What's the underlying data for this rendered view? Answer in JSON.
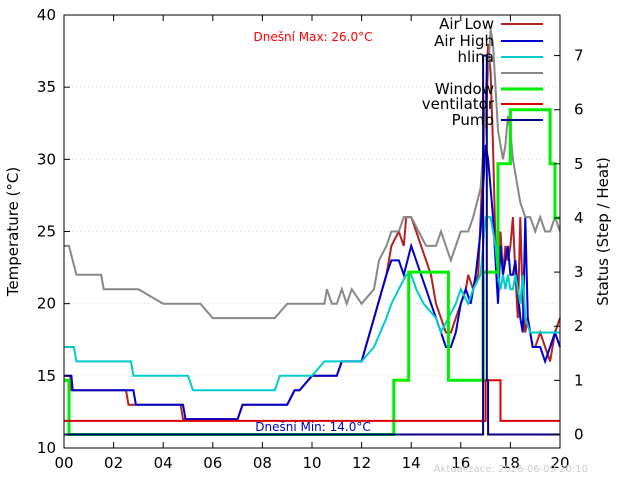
{
  "chart_data": {
    "type": "line",
    "ylabel": "Temperature (°C)",
    "y2label": "Status (Step / Heat)",
    "xlim": [
      0,
      20
    ],
    "ylim": [
      10,
      40
    ],
    "y2lim": [
      -0.25,
      7.75
    ],
    "x_ticks": [
      "00",
      "02",
      "04",
      "06",
      "08",
      "10",
      "12",
      "14",
      "16",
      "18",
      "20"
    ],
    "y_ticks": [
      "10",
      "15",
      "20",
      "25",
      "30",
      "35",
      "40"
    ],
    "y2_ticks": [
      "0",
      "1",
      "2",
      "3",
      "4",
      "5",
      "6",
      "7"
    ],
    "grid": true,
    "legend_position": "top-right",
    "annotations": {
      "max_text": "Dnešní Max: 26.0°C",
      "max_color": "#ff0000",
      "min_text": "Dnešní Min: 14.0°C",
      "min_color": "#0000cc",
      "footer": "Aktualizace: 2026-06-09 20:10"
    },
    "series": [
      {
        "name": "Air Low",
        "axis": "y",
        "color": "#b22222",
        "x": [
          0,
          0.25,
          0.3,
          1,
          2,
          2.5,
          2.6,
          3,
          4,
          4.7,
          4.8,
          5,
          5.5,
          6,
          6.5,
          7,
          7.2,
          7.5,
          8,
          9,
          9.3,
          9.5,
          10,
          10.5,
          11,
          11.2,
          11.5,
          12,
          12.5,
          13,
          13.2,
          13.5,
          13.7,
          13.8,
          14,
          14.2,
          14.4,
          14.6,
          14.8,
          15,
          15.2,
          15.4,
          15.6,
          15.8,
          16,
          16.2,
          16.3,
          16.5,
          16.7,
          16.8,
          16.9,
          17,
          17.1,
          17.2,
          17.3,
          17.4,
          17.5,
          17.6,
          17.7,
          17.8,
          17.9,
          18,
          18.1,
          18.2,
          18.3,
          18.4,
          18.5,
          18.6,
          18.7,
          18.8,
          18.9,
          19,
          19.2,
          19.4,
          19.6,
          19.8,
          20
        ],
        "y": [
          15,
          15,
          14,
          14,
          14,
          14,
          13,
          13,
          13,
          13,
          12,
          12,
          12,
          12,
          12,
          12,
          13,
          13,
          13,
          13,
          14,
          14,
          15,
          15,
          15,
          16,
          16,
          16,
          19,
          22,
          24,
          25,
          24,
          26,
          26,
          25,
          24,
          23,
          22,
          20,
          19,
          18,
          18,
          19,
          20,
          21,
          22,
          21,
          22,
          26,
          30,
          34,
          38,
          36,
          31,
          24,
          22,
          25,
          22,
          24,
          23,
          24,
          26,
          22,
          19,
          26,
          20,
          18,
          19,
          18,
          17,
          17,
          18,
          17,
          16,
          18,
          19
        ]
      },
      {
        "name": "Air High",
        "axis": "y",
        "color": "#0000cc",
        "x": [
          0,
          0.3,
          0.35,
          1,
          2,
          2.8,
          2.9,
          3,
          4,
          4.8,
          4.9,
          5,
          5.5,
          6,
          6.5,
          7,
          7.2,
          7.5,
          8,
          9,
          9.3,
          9.5,
          10,
          10.5,
          11,
          11.2,
          11.5,
          12,
          12.5,
          13,
          13.2,
          13.5,
          13.7,
          14,
          14.2,
          14.4,
          14.6,
          14.8,
          15,
          15.2,
          15.4,
          15.6,
          15.8,
          16,
          16.2,
          16.4,
          16.6,
          16.8,
          16.9,
          17,
          17.1,
          17.2,
          17.3,
          17.4,
          17.5,
          17.6,
          17.7,
          17.8,
          17.9,
          18,
          18.1,
          18.2,
          18.3,
          18.4,
          18.5,
          18.6,
          18.7,
          18.8,
          18.9,
          19,
          19.2,
          19.4,
          19.6,
          19.8,
          20
        ],
        "y": [
          15,
          15,
          14,
          14,
          14,
          14,
          13,
          13,
          13,
          13,
          12,
          12,
          12,
          12,
          12,
          12,
          13,
          13,
          13,
          13,
          14,
          14,
          15,
          15,
          15,
          16,
          16,
          16,
          19,
          22,
          23,
          23,
          22,
          24,
          23,
          22,
          21,
          20,
          19,
          18,
          17,
          17,
          18,
          20,
          21,
          20,
          22,
          25,
          28,
          31,
          30,
          28,
          26,
          23,
          20,
          24,
          22,
          23,
          24,
          22,
          22,
          23,
          21,
          19,
          18,
          26,
          19,
          18,
          17,
          17,
          17,
          16,
          17,
          18,
          17
        ]
      },
      {
        "name": "hlina",
        "axis": "y",
        "color": "#00cccc",
        "x": [
          0,
          0.4,
          0.5,
          1,
          2,
          2.7,
          2.8,
          3,
          4,
          5,
          5.2,
          6,
          7,
          8,
          8.5,
          8.7,
          9,
          9.5,
          10,
          10.5,
          11,
          11.5,
          12,
          12.5,
          13,
          13.2,
          13.5,
          13.8,
          14,
          14.2,
          14.5,
          15,
          15.2,
          15.5,
          15.8,
          16,
          16.3,
          16.5,
          16.8,
          17,
          17.2,
          17.4,
          17.5,
          17.6,
          17.7,
          17.8,
          17.9,
          18,
          18.1,
          18.2,
          18.3,
          18.4,
          18.5,
          18.6,
          18.8,
          19,
          19.2,
          19.5,
          19.8,
          20
        ],
        "y": [
          17,
          17,
          16,
          16,
          16,
          16,
          15,
          15,
          15,
          15,
          14,
          14,
          14,
          14,
          14,
          15,
          15,
          15,
          15,
          16,
          16,
          16,
          16,
          17,
          19,
          20,
          21,
          22,
          22,
          21,
          20,
          19,
          18,
          19,
          20,
          21,
          20,
          21,
          22,
          26,
          26,
          24,
          22,
          21,
          22,
          21,
          22,
          21,
          21,
          22,
          21,
          20,
          22,
          19,
          18,
          18,
          18,
          18,
          18,
          18
        ]
      },
      {
        "name": "",
        "axis": "y",
        "color": "#888888",
        "x": [
          0,
          0.2,
          0.5,
          1,
          1.5,
          1.6,
          2,
          3,
          3,
          4,
          5,
          5.5,
          6,
          6.5,
          7,
          7.5,
          8,
          8.5,
          9,
          9.5,
          10,
          10.5,
          10.6,
          10.8,
          11,
          11.2,
          11.4,
          11.6,
          12,
          12.5,
          12.7,
          13,
          13.2,
          13.5,
          13.7,
          14,
          14.3,
          14.6,
          15,
          15.2,
          15.4,
          15.6,
          15.8,
          16,
          16.3,
          16.5,
          16.8,
          17,
          17.1,
          17.2,
          17.3,
          17.4,
          17.5,
          17.6,
          17.7,
          17.8,
          17.9,
          18,
          18.1,
          18.2,
          18.4,
          18.6,
          18.8,
          19,
          19.2,
          19.4,
          19.6,
          19.8,
          20
        ],
        "y": [
          24,
          24,
          22,
          22,
          22,
          21,
          21,
          21,
          21,
          20,
          20,
          20,
          19,
          19,
          19,
          19,
          19,
          19,
          20,
          20,
          20,
          20,
          21,
          20,
          20,
          21,
          20,
          21,
          20,
          21,
          23,
          24,
          25,
          25,
          26,
          26,
          25,
          24,
          24,
          25,
          24,
          23,
          24,
          25,
          25,
          26,
          28,
          33,
          36,
          39,
          38,
          35,
          32,
          31,
          30,
          31,
          33,
          32,
          30,
          29,
          27,
          26,
          26,
          25,
          26,
          25,
          25,
          26,
          25
        ]
      },
      {
        "name": "Window",
        "axis": "y2",
        "color": "#00ee00",
        "step": true,
        "x": [
          0,
          0.2,
          0.2,
          13.3,
          13.3,
          13.9,
          13.9,
          15.5,
          15.5,
          16.9,
          16.9,
          17.5,
          17.5,
          18,
          18,
          19.6,
          19.6,
          19.8,
          19.8,
          20
        ],
        "y": [
          1,
          1,
          0,
          0,
          1,
          1,
          3,
          3,
          1,
          1,
          3,
          3,
          5,
          5,
          6,
          6,
          5,
          5,
          4,
          4
        ]
      },
      {
        "name": "ventilator",
        "axis": "y2",
        "color": "#dd0000",
        "step": true,
        "x": [
          0,
          17.0,
          17.0,
          17.6,
          17.6,
          20
        ],
        "y": [
          0.25,
          0.25,
          1,
          1,
          0.25,
          0.25
        ]
      },
      {
        "name": "Pump",
        "axis": "y2",
        "color": "#000080",
        "step": true,
        "x": [
          0,
          16.9,
          16.9,
          17.05,
          17.05,
          17.1,
          17.1,
          20
        ],
        "y": [
          0,
          0,
          7,
          7,
          1,
          1,
          0,
          0
        ]
      }
    ]
  }
}
